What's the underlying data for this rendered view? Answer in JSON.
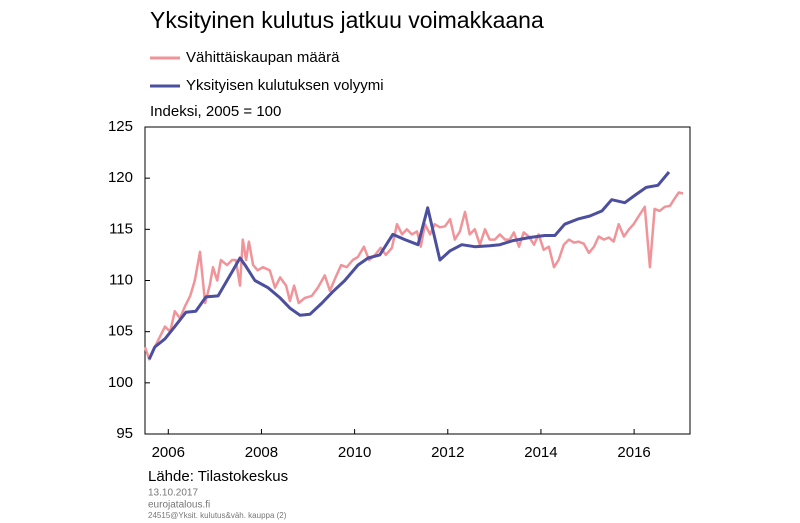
{
  "chart_data": {
    "type": "line",
    "title": "Yksityinen kulutus jatkuu voimakkaana",
    "y_label": "Indeksi, 2005 = 100",
    "source": "Lähde: Tilastokeskus",
    "date": "13.10.2017",
    "site": "eurojatalous.fi",
    "code": "24515@Yksit. kulutus&väh. kauppa (2)",
    "xlim": [
      2006,
      2017.7
    ],
    "xticks": [
      {
        "value": 2006.5,
        "label": "2006"
      },
      {
        "value": 2008.5,
        "label": "2008"
      },
      {
        "value": 2010.5,
        "label": "2010"
      },
      {
        "value": 2012.5,
        "label": "2012"
      },
      {
        "value": 2014.5,
        "label": "2014"
      },
      {
        "value": 2016.5,
        "label": "2016"
      }
    ],
    "ylim": [
      95,
      125
    ],
    "yticks": [
      95,
      100,
      105,
      110,
      115,
      120,
      125
    ],
    "series": [
      {
        "name": "Vähittäiskaupan määrä",
        "color": "#f0949a",
        "x": [
          2006.0,
          2006.09,
          2006.21,
          2006.32,
          2006.43,
          2006.54,
          2006.64,
          2006.75,
          2006.86,
          2006.97,
          2007.07,
          2007.18,
          2007.29,
          2007.39,
          2007.46,
          2007.55,
          2007.63,
          2007.76,
          2007.87,
          2007.95,
          2008.04,
          2008.1,
          2008.17,
          2008.23,
          2008.32,
          2008.42,
          2008.53,
          2008.68,
          2008.79,
          2008.9,
          2009.03,
          2009.11,
          2009.2,
          2009.3,
          2009.43,
          2009.58,
          2009.71,
          2009.86,
          2009.97,
          2010.08,
          2010.21,
          2010.33,
          2010.46,
          2010.57,
          2010.7,
          2010.81,
          2010.94,
          2011.06,
          2011.17,
          2011.3,
          2011.41,
          2011.52,
          2011.62,
          2011.73,
          2011.84,
          2011.92,
          2012.01,
          2012.12,
          2012.22,
          2012.33,
          2012.44,
          2012.55,
          2012.65,
          2012.76,
          2012.87,
          2012.97,
          2013.08,
          2013.19,
          2013.3,
          2013.4,
          2013.51,
          2013.62,
          2013.73,
          2013.83,
          2013.92,
          2014.03,
          2014.13,
          2014.24,
          2014.35,
          2014.45,
          2014.56,
          2014.67,
          2014.78,
          2014.88,
          2014.99,
          2015.1,
          2015.21,
          2015.31,
          2015.42,
          2015.53,
          2015.64,
          2015.74,
          2015.85,
          2015.96,
          2016.06,
          2016.17,
          2016.28,
          2016.39,
          2016.49,
          2016.6,
          2016.73,
          2016.84,
          2016.94,
          2017.05,
          2017.16,
          2017.27,
          2017.37,
          2017.46,
          2017.55
        ],
        "values": [
          103.5,
          102.3,
          103.5,
          104.5,
          105.5,
          105,
          107,
          106.3,
          107.5,
          108.5,
          110,
          112.8,
          107.8,
          109.5,
          111.3,
          110,
          112,
          111.5,
          112,
          112,
          109.5,
          114,
          112,
          113.8,
          111.5,
          111,
          111.3,
          111,
          109.3,
          110.3,
          109.5,
          108,
          109.5,
          107.8,
          108.3,
          108.5,
          109.3,
          110.5,
          109,
          110.2,
          111.5,
          111.3,
          112,
          112.3,
          113.3,
          112,
          112.5,
          113.2,
          112.5,
          113.2,
          115.5,
          114.5,
          115,
          114.5,
          114.8,
          113.3,
          115.5,
          114.5,
          115.5,
          115.2,
          115.3,
          116,
          114,
          114.8,
          116.7,
          114.5,
          115,
          113.5,
          115,
          114,
          114,
          114.5,
          114,
          114,
          114.7,
          113.3,
          114.7,
          114.3,
          113.5,
          114.5,
          113,
          113.3,
          111.3,
          112,
          113.5,
          114,
          113.7,
          113.8,
          113.6,
          112.7,
          113.3,
          114.3,
          114,
          114.2,
          113.8,
          115.5,
          114.3,
          115,
          115.5,
          116.3,
          117.2,
          111.3,
          117,
          116.8,
          117.2,
          117.3,
          118,
          118.6,
          118.5
        ]
      },
      {
        "name": "Yksityisen kulutuksen volyymi",
        "color": "#4b4f9e",
        "x": [
          2006.09,
          2006.21,
          2006.43,
          2006.64,
          2006.88,
          2007.09,
          2007.31,
          2007.57,
          2007.89,
          2008.04,
          2008.15,
          2008.36,
          2008.64,
          2008.9,
          2009.11,
          2009.33,
          2009.54,
          2009.8,
          2010.03,
          2010.29,
          2010.57,
          2010.79,
          2011.04,
          2011.32,
          2011.58,
          2011.86,
          2012.07,
          2012.33,
          2012.55,
          2012.8,
          2013.08,
          2013.4,
          2013.62,
          2013.9,
          2014.26,
          2014.58,
          2014.8,
          2015.01,
          2015.29,
          2015.55,
          2015.81,
          2016.02,
          2016.3,
          2016.54,
          2016.76,
          2017.01,
          2017.25
        ],
        "values": [
          102.3,
          103.5,
          104.3,
          105.5,
          106.9,
          107,
          108.4,
          108.5,
          111,
          112.2,
          111.5,
          110,
          109.3,
          108.3,
          107.3,
          106.6,
          106.7,
          107.8,
          108.9,
          110,
          111.5,
          112.2,
          112.5,
          114.5,
          114,
          113.5,
          117.1,
          112,
          112.9,
          113.5,
          113.3,
          113.4,
          113.5,
          113.9,
          114.2,
          114.4,
          114.4,
          115.5,
          116,
          116.3,
          116.8,
          117.9,
          117.6,
          118.4,
          119.1,
          119.3,
          120.6
        ]
      }
    ]
  }
}
